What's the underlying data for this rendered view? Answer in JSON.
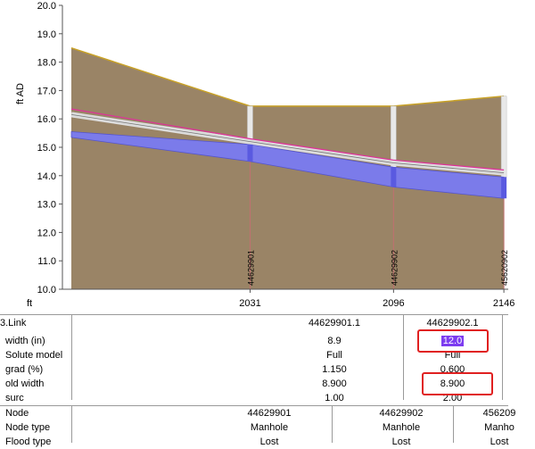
{
  "chart_data": {
    "type": "area",
    "ylabel": "ft AD",
    "xlabel": "ft",
    "ylim": [
      10.0,
      20.0
    ],
    "y_ticks": [
      "20.0",
      "19.0",
      "18.0",
      "17.0",
      "16.0",
      "15.0",
      "14.0",
      "13.0",
      "12.0",
      "11.0",
      "10.0"
    ],
    "x_ticks": [
      "2031",
      "2096",
      "2146"
    ],
    "node_labels": [
      "44629901",
      "44629902",
      "45620902"
    ],
    "ground_profile": [
      {
        "x": 1950,
        "y": 18.5
      },
      {
        "x": 2031,
        "y": 16.45
      },
      {
        "x": 2096,
        "y": 16.45
      },
      {
        "x": 2146,
        "y": 16.8
      }
    ],
    "pipe_crown": [
      {
        "x": 1950,
        "y": 15.55
      },
      {
        "x": 2031,
        "y": 15.1
      },
      {
        "x": 2096,
        "y": 14.3
      },
      {
        "x": 2146,
        "y": 13.95
      }
    ],
    "pipe_invert": [
      {
        "x": 1950,
        "y": 15.35
      },
      {
        "x": 2031,
        "y": 14.5
      },
      {
        "x": 2096,
        "y": 13.6
      },
      {
        "x": 2146,
        "y": 13.2
      }
    ],
    "hgl": [
      {
        "x": 1950,
        "y": 16.35
      },
      {
        "x": 2031,
        "y": 15.3
      },
      {
        "x": 2096,
        "y": 14.55
      },
      {
        "x": 2146,
        "y": 14.2
      }
    ],
    "old_pipe_top": [
      {
        "x": 1950,
        "y": 16.15
      },
      {
        "x": 2031,
        "y": 15.2
      },
      {
        "x": 2096,
        "y": 14.45
      },
      {
        "x": 2146,
        "y": 14.1
      }
    ],
    "colors": {
      "ground": "#9a8466",
      "ground_edge": "#c9a227",
      "pipe": "#7b7bea",
      "hgl": "#e0309a",
      "old_pipe": "#dcdcdc",
      "node_line": "#c07070"
    }
  },
  "link_table": {
    "header": "3.Link",
    "columns": [
      "44629901.1",
      "44629902.1"
    ],
    "rows": [
      {
        "label": "width (in)",
        "values": [
          "8.9",
          "12.0"
        ]
      },
      {
        "label": "Solute model",
        "values": [
          "Full",
          "Full"
        ]
      },
      {
        "label": "grad (%)",
        "values": [
          "1.150",
          "0.600"
        ]
      },
      {
        "label": "old width",
        "values": [
          "8.900",
          "8.900"
        ]
      },
      {
        "label": "surc",
        "values": [
          "1.00",
          "2.00"
        ]
      }
    ]
  },
  "node_table": {
    "rows": [
      {
        "label": "Node",
        "values": [
          "44629901",
          "44629902",
          "456209"
        ]
      },
      {
        "label": "Node type",
        "values": [
          "Manhole",
          "Manhole",
          "Manho"
        ]
      },
      {
        "label": "Flood type",
        "values": [
          "Lost",
          "Lost",
          "Lost"
        ]
      }
    ]
  }
}
